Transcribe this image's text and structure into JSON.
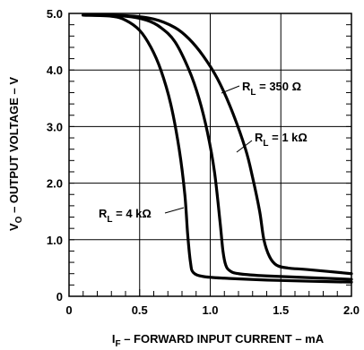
{
  "chart_data": {
    "type": "line",
    "xlabel": {
      "main": "I",
      "sub": "F",
      "rest": " – FORWARD INPUT CURRENT – mA"
    },
    "ylabel": {
      "main": "V",
      "sub": "O",
      "rest": " – OUTPUT VOLTAGE – V"
    },
    "xlim": [
      0,
      2.0
    ],
    "ylim": [
      0,
      5.0
    ],
    "x_ticks": [
      0,
      0.5,
      1.0,
      1.5,
      2.0
    ],
    "x_tick_labels": [
      "0",
      "0.5",
      "1.0",
      "1.5",
      "2.0"
    ],
    "y_ticks": [
      0,
      1.0,
      2.0,
      3.0,
      4.0,
      5.0
    ],
    "y_tick_labels": [
      "0",
      "1.0",
      "2.0",
      "3.0",
      "4.0",
      "5.0"
    ],
    "grid": true,
    "series": [
      {
        "name": "RL = 350 Ω",
        "label": {
          "main": "R",
          "sub": "L",
          "rest": " = 350 Ω"
        },
        "x": [
          0.1,
          0.4,
          0.6,
          0.75,
          0.85,
          0.95,
          1.05,
          1.15,
          1.25,
          1.3,
          1.35,
          1.38,
          1.42,
          1.47,
          1.55,
          1.7,
          2.0
        ],
        "y": [
          4.97,
          4.96,
          4.9,
          4.75,
          4.55,
          4.25,
          3.85,
          3.3,
          2.6,
          2.1,
          1.5,
          1.0,
          0.7,
          0.55,
          0.5,
          0.47,
          0.4
        ]
      },
      {
        "name": "RL = 1 kΩ",
        "label": {
          "main": "R",
          "sub": "L",
          "rest": " = 1 kΩ"
        },
        "x": [
          0.1,
          0.4,
          0.55,
          0.65,
          0.75,
          0.85,
          0.92,
          0.98,
          1.03,
          1.07,
          1.09,
          1.11,
          1.14,
          1.2,
          1.4,
          2.0
        ],
        "y": [
          4.97,
          4.95,
          4.88,
          4.75,
          4.5,
          4.0,
          3.5,
          2.9,
          2.2,
          1.3,
          0.8,
          0.55,
          0.45,
          0.4,
          0.36,
          0.3
        ]
      },
      {
        "name": "RL = 4 kΩ",
        "label": {
          "main": "R",
          "sub": "L",
          "rest": " = 4 kΩ"
        },
        "x": [
          0.1,
          0.3,
          0.4,
          0.5,
          0.58,
          0.65,
          0.72,
          0.78,
          0.82,
          0.84,
          0.86,
          0.88,
          0.95,
          1.1,
          1.5,
          2.0
        ],
        "y": [
          4.97,
          4.95,
          4.88,
          4.7,
          4.4,
          4.0,
          3.4,
          2.6,
          1.8,
          1.1,
          0.6,
          0.42,
          0.35,
          0.32,
          0.28,
          0.25
        ]
      }
    ]
  }
}
